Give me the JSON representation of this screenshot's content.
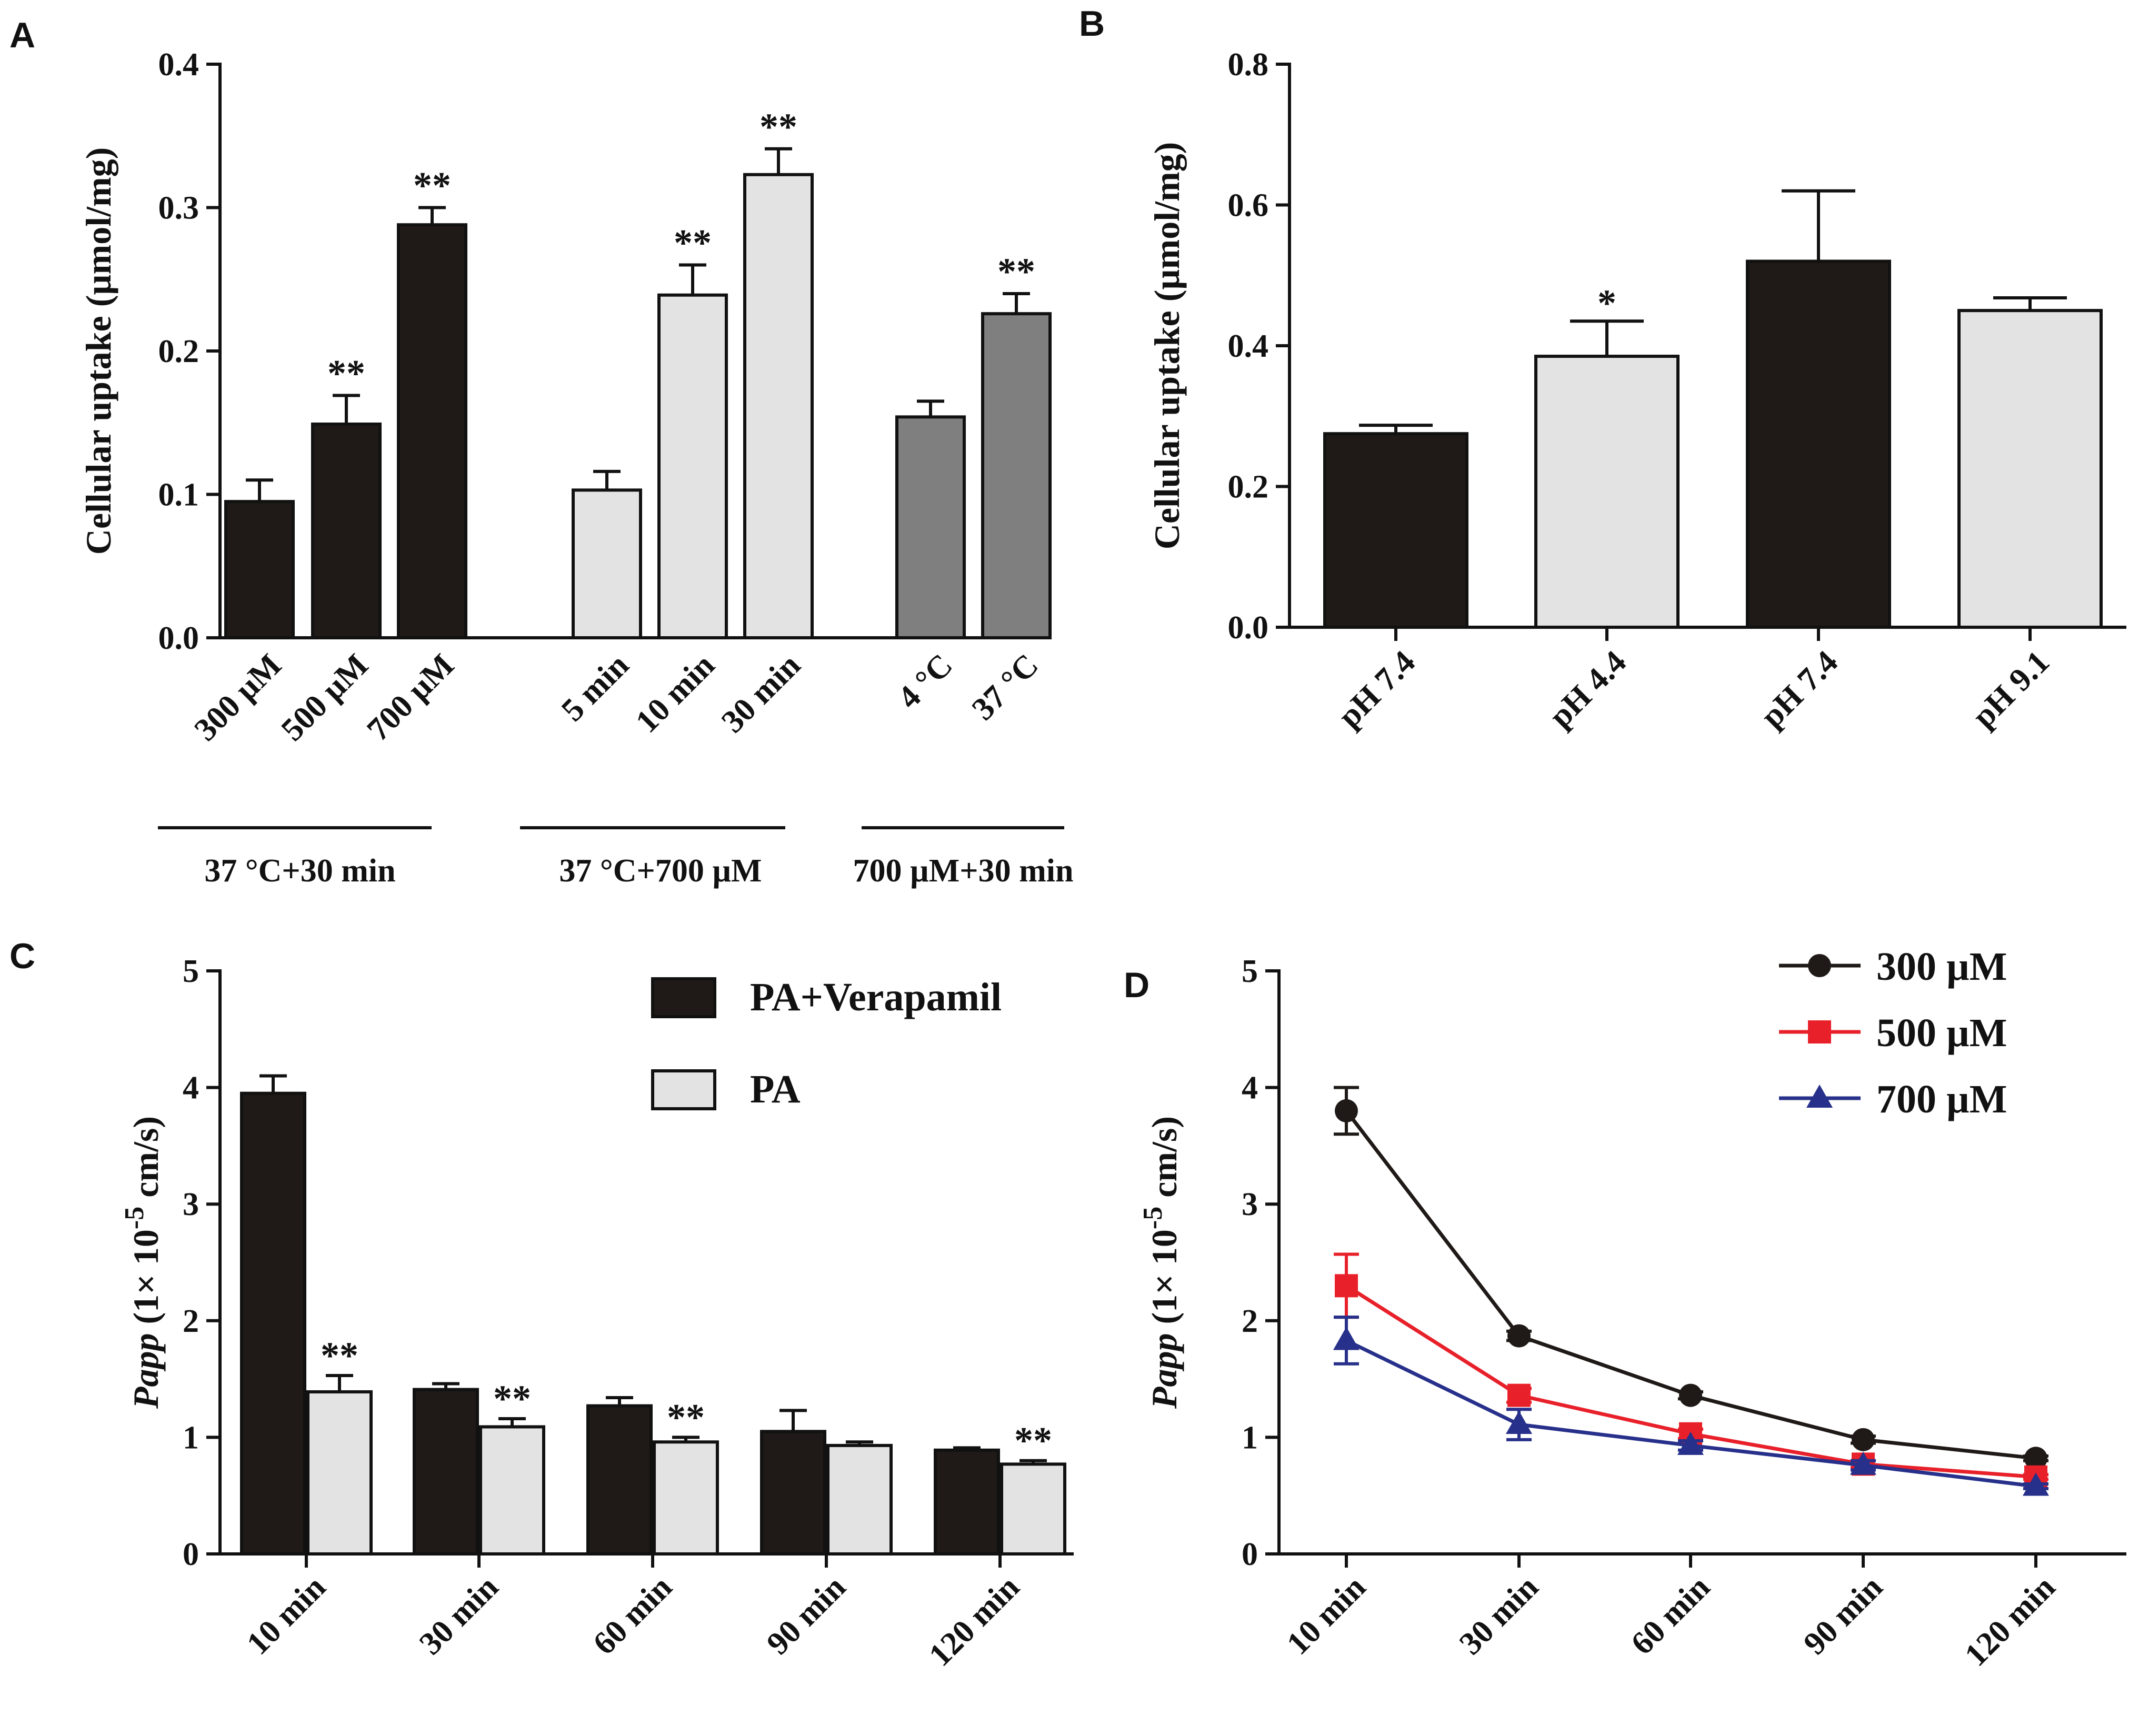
{
  "colors": {
    "black_bar": "#1f1a17",
    "light_bar": "#e3e3e3",
    "gray_bar": "#7f7f7f",
    "series_300": "#1f1a17",
    "series_500": "#e8202a",
    "series_700": "#27308a"
  },
  "chart_data": [
    {
      "panel": "A",
      "type": "bar",
      "ylabel": "Cellular uptake (µmol/mg)",
      "ylim": [
        0,
        0.4
      ],
      "yticks": [
        "0.0",
        "0.1",
        "0.2",
        "0.3",
        "0.4"
      ],
      "bars": [
        {
          "label": "300 µM",
          "value": 0.095,
          "err": 0.015,
          "sig": "",
          "fill": "black"
        },
        {
          "label": "500 µM",
          "value": 0.149,
          "err": 0.02,
          "sig": "**",
          "fill": "black"
        },
        {
          "label": "700 µM",
          "value": 0.288,
          "err": 0.012,
          "sig": "**",
          "fill": "black"
        },
        {
          "label": "5 min",
          "value": 0.103,
          "err": 0.013,
          "sig": "",
          "fill": "light"
        },
        {
          "label": "10 min",
          "value": 0.239,
          "err": 0.021,
          "sig": "**",
          "fill": "light"
        },
        {
          "label": "30 min",
          "value": 0.323,
          "err": 0.018,
          "sig": "**",
          "fill": "light"
        },
        {
          "label": "4 °C",
          "value": 0.154,
          "err": 0.011,
          "sig": "",
          "fill": "gray"
        },
        {
          "label": "37 °C",
          "value": 0.226,
          "err": 0.014,
          "sig": "**",
          "fill": "gray"
        }
      ],
      "groups": [
        "37 °C+30 min",
        "37 °C+700 µM",
        "700 µM+30 min"
      ]
    },
    {
      "panel": "B",
      "type": "bar",
      "ylabel": "Cellular uptake (µmol/mg)",
      "ylim": [
        0,
        0.8
      ],
      "yticks": [
        "0.0",
        "0.2",
        "0.4",
        "0.6",
        "0.8"
      ],
      "bars": [
        {
          "label": "pH 7.4",
          "value": 0.275,
          "err": 0.012,
          "sig": "",
          "fill": "black"
        },
        {
          "label": "pH 4.4",
          "value": 0.385,
          "err": 0.05,
          "sig": "*",
          "fill": "light"
        },
        {
          "label": "pH 7.4",
          "value": 0.52,
          "err": 0.1,
          "sig": "",
          "fill": "black"
        },
        {
          "label": "pH 9.1",
          "value": 0.45,
          "err": 0.018,
          "sig": "",
          "fill": "light"
        }
      ]
    },
    {
      "panel": "C",
      "type": "bar",
      "ylabel_main": "Papp",
      "ylabel_rest": "(1× 10",
      "ylabel_exp": "-5",
      "ylabel_unit": "cm/s)",
      "ylim": [
        0,
        5
      ],
      "yticks": [
        "0",
        "1",
        "2",
        "3",
        "4",
        "5"
      ],
      "categories": [
        "10 min",
        "30 min",
        "60 min",
        "90 min",
        "120 min"
      ],
      "series": [
        {
          "name": "PA+Verapamil",
          "values": [
            3.95,
            1.41,
            1.27,
            1.05,
            0.89
          ],
          "errs": [
            0.15,
            0.05,
            0.07,
            0.18,
            0.02
          ],
          "sig": [
            "",
            "",
            "",
            "",
            ""
          ],
          "fill": "black"
        },
        {
          "name": "PA",
          "values": [
            1.39,
            1.09,
            0.96,
            0.93,
            0.77
          ],
          "errs": [
            0.14,
            0.07,
            0.04,
            0.03,
            0.03
          ],
          "sig": [
            "**",
            "**",
            "**",
            "",
            "**"
          ],
          "fill": "light"
        }
      ]
    },
    {
      "panel": "D",
      "type": "line",
      "ylabel_main": "Papp",
      "ylabel_rest": "(1× 10",
      "ylabel_exp": "-5",
      "ylabel_unit": "cm/s)",
      "ylim": [
        0,
        5
      ],
      "yticks": [
        "0",
        "1",
        "2",
        "3",
        "4",
        "5"
      ],
      "categories": [
        "10 min",
        "30 min",
        "60 min",
        "90 min",
        "120 min"
      ],
      "series": [
        {
          "name": "300 µM",
          "marker": "circle",
          "color_key": "series_300",
          "values": [
            3.8,
            1.87,
            1.36,
            0.98,
            0.82
          ],
          "errs": [
            0.2,
            0.04,
            0.03,
            0.03,
            0.02
          ]
        },
        {
          "name": "500 µM",
          "marker": "square",
          "color_key": "series_500",
          "values": [
            2.3,
            1.36,
            1.03,
            0.77,
            0.66
          ],
          "errs": [
            0.27,
            0.06,
            0.04,
            0.03,
            0.02
          ]
        },
        {
          "name": "700 µM",
          "marker": "triangle",
          "color_key": "series_700",
          "values": [
            1.83,
            1.11,
            0.93,
            0.76,
            0.58
          ],
          "errs": [
            0.2,
            0.13,
            0.04,
            0.04,
            0.02
          ]
        }
      ]
    }
  ],
  "panel_letters": [
    "A",
    "B",
    "C",
    "D"
  ]
}
